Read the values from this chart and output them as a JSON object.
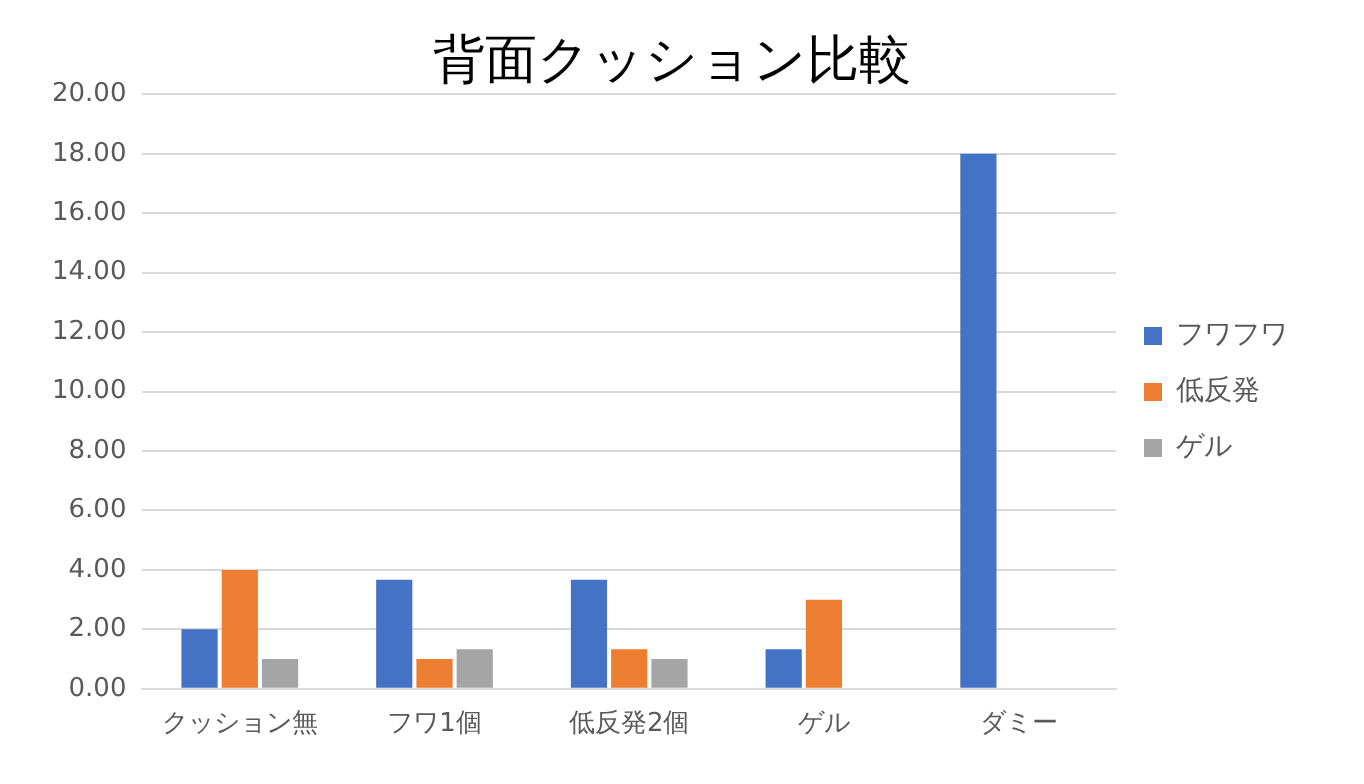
{
  "chart_data": {
    "type": "bar",
    "title": "背面クッション比較",
    "categories": [
      "クッション無",
      "フワ1個",
      "低反発2個",
      "ゲル",
      "ダミー"
    ],
    "series": [
      {
        "name": "フワフワ",
        "color": "#4472c4",
        "values": [
          2,
          3.67,
          3.67,
          1.33,
          18
        ]
      },
      {
        "name": "低反発",
        "color": "#ed7d31",
        "values": [
          4,
          1,
          1.33,
          3,
          null
        ]
      },
      {
        "name": "ゲル",
        "color": "#a5a5a5",
        "values": [
          1,
          1.33,
          1,
          null,
          null
        ]
      }
    ],
    "ylim": [
      0,
      20
    ],
    "yticks": [
      {
        "value": 0,
        "label": "0.00"
      },
      {
        "value": 2,
        "label": "2.00"
      },
      {
        "value": 4,
        "label": "4.00"
      },
      {
        "value": 6,
        "label": "6.00"
      },
      {
        "value": 8,
        "label": "8.00"
      },
      {
        "value": 10,
        "label": "10.00"
      },
      {
        "value": 12,
        "label": "12.00"
      },
      {
        "value": 14,
        "label": "14.00"
      },
      {
        "value": 16,
        "label": "16.00"
      },
      {
        "value": 18,
        "label": "18.00"
      },
      {
        "value": 20,
        "label": "20.00"
      }
    ],
    "grid": "y",
    "legend": "right"
  }
}
